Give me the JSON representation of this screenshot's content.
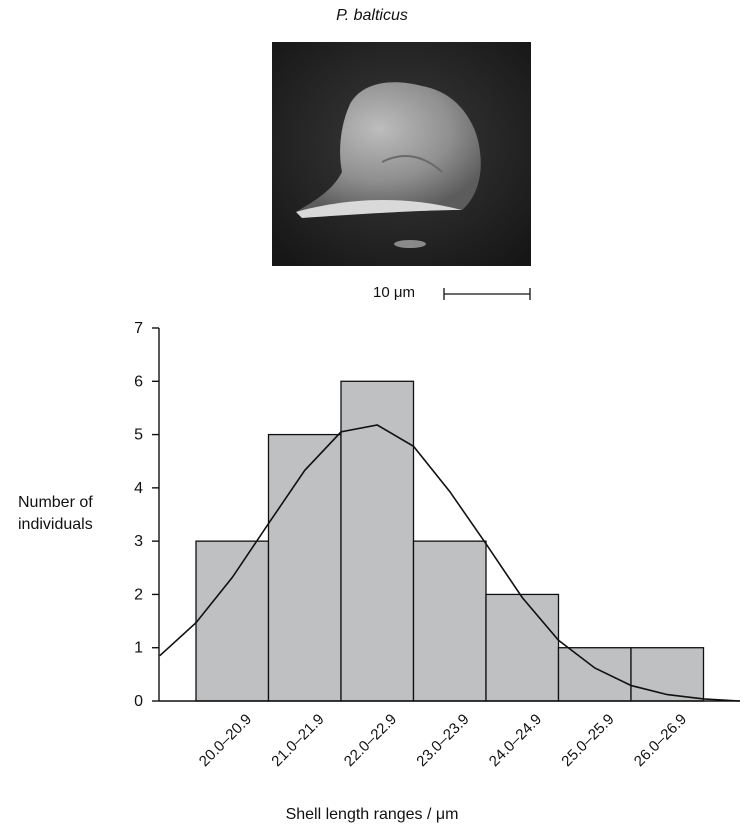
{
  "figure": {
    "species": "P. balticus",
    "scale_label": "10 μm"
  },
  "chart_data": {
    "type": "bar",
    "subtype": "histogram",
    "categories": [
      "20.0–20.9",
      "21.0–21.9",
      "22.0–22.9",
      "23.0–23.9",
      "24.0–24.9",
      "25.0–25.9",
      "26.0–26.9"
    ],
    "values": [
      3,
      5,
      6,
      3,
      2,
      1,
      1
    ],
    "xlabel": "Shell length ranges / μm",
    "ylabel_lines": [
      "Number of",
      "individuals"
    ],
    "ylim": [
      0,
      7
    ],
    "yticks": [
      0,
      1,
      2,
      3,
      4,
      5,
      6,
      7
    ],
    "bar_color": "#bfc0c2",
    "fit_curve": {
      "type": "normal",
      "x": [
        19.5,
        20.0,
        20.5,
        21.0,
        21.5,
        22.0,
        22.5,
        23.0,
        23.5,
        24.0,
        24.5,
        25.0,
        25.5,
        26.0,
        26.5,
        27.0,
        27.5
      ],
      "y": [
        0.85,
        1.47,
        2.32,
        3.33,
        4.33,
        5.05,
        5.18,
        4.78,
        3.93,
        2.95,
        1.94,
        1.14,
        0.62,
        0.29,
        0.12,
        0.04,
        0.0
      ]
    },
    "grid": false,
    "legend": "none"
  }
}
